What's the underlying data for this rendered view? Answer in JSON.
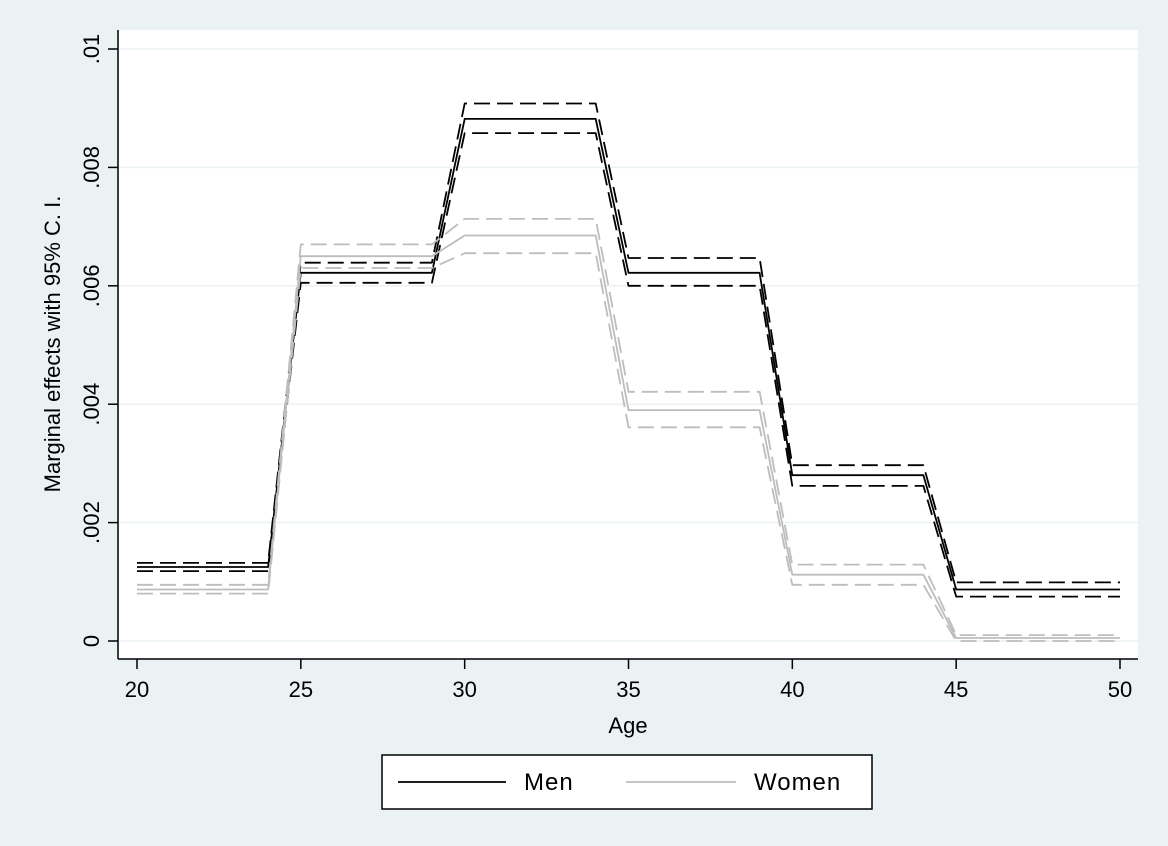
{
  "chart_data": {
    "type": "line",
    "xlabel": "Age",
    "ylabel": "Marginal effects with 95% C. I.",
    "xlim": [
      20,
      50
    ],
    "ylim": [
      0,
      0.01
    ],
    "x_ticks": [
      20,
      25,
      30,
      35,
      40,
      45,
      50
    ],
    "x_tick_labels": [
      "20",
      "25",
      "30",
      "35",
      "40",
      "45",
      "50"
    ],
    "y_ticks": [
      0,
      0.002,
      0.004,
      0.006,
      0.008,
      0.01
    ],
    "y_tick_labels": [
      "0",
      ".002",
      ".004",
      ".006",
      ".008",
      ".01"
    ],
    "grid": true,
    "legend_position": "bottom",
    "x": [
      20,
      24,
      25,
      29,
      30,
      34,
      35,
      39,
      40,
      44,
      45,
      50
    ],
    "series": [
      {
        "name": "Men",
        "role": "estimate",
        "color": "#000000",
        "dashed": false,
        "values": [
          0.00125,
          0.00125,
          0.00622,
          0.00622,
          0.00882,
          0.00882,
          0.00622,
          0.00622,
          0.0028,
          0.0028,
          0.00087,
          0.00087
        ]
      },
      {
        "role": "upper",
        "group": "Men",
        "color": "#000000",
        "dashed": true,
        "values": [
          0.00132,
          0.00132,
          0.00639,
          0.00639,
          0.00908,
          0.00908,
          0.00647,
          0.00647,
          0.00297,
          0.00297,
          0.00099,
          0.00099
        ]
      },
      {
        "role": "lower",
        "group": "Men",
        "color": "#000000",
        "dashed": true,
        "values": [
          0.00118,
          0.00118,
          0.00605,
          0.00605,
          0.00858,
          0.00858,
          0.006,
          0.006,
          0.00262,
          0.00262,
          0.00075,
          0.00075
        ]
      },
      {
        "name": "Women",
        "role": "estimate",
        "color": "#bdbdbd",
        "dashed": false,
        "values": [
          0.00087,
          0.00087,
          0.0065,
          0.0065,
          0.00685,
          0.00685,
          0.0039,
          0.0039,
          0.00112,
          0.00112,
          5e-05,
          5e-05
        ]
      },
      {
        "role": "upper",
        "group": "Women",
        "color": "#bdbdbd",
        "dashed": true,
        "values": [
          0.00095,
          0.00095,
          0.0067,
          0.0067,
          0.00713,
          0.00713,
          0.00421,
          0.00421,
          0.00129,
          0.00129,
          0.0001,
          0.0001
        ]
      },
      {
        "role": "lower",
        "group": "Women",
        "color": "#bdbdbd",
        "dashed": true,
        "values": [
          0.0008,
          0.0008,
          0.0063,
          0.0063,
          0.00655,
          0.00655,
          0.00361,
          0.00361,
          0.00095,
          0.00095,
          0.0,
          0.0
        ]
      }
    ],
    "legend": [
      {
        "label": "Men",
        "color": "#000000"
      },
      {
        "label": "Women",
        "color": "#bdbdbd"
      }
    ]
  }
}
